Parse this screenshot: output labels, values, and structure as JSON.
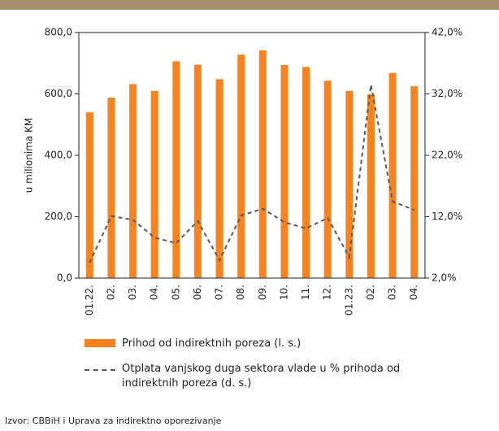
{
  "chart_data": {
    "type": "bar_line",
    "ylabel": "u milionima KM",
    "categories": [
      "01.22.",
      "02.",
      "03.",
      "04.",
      "05.",
      "06.",
      "07.",
      "08.",
      "09.",
      "10.",
      "11.",
      "12.",
      "01.23.",
      "02.",
      "03.",
      "04."
    ],
    "series": [
      {
        "name": "Prihod od indirektnih poreza (l. s.)",
        "type": "bar",
        "color": "#f7821e",
        "axis": "y",
        "values": [
          540,
          588,
          632,
          610,
          706,
          695,
          648,
          728,
          742,
          694,
          688,
          643,
          610,
          598,
          668,
          625
        ]
      },
      {
        "name": "Otplata vanjskog duga sektora vlade u % prihoda od indirektnih poreza (d. s.)",
        "type": "line",
        "color": "#595959",
        "axis": "y2",
        "values": [
          4.5,
          12.1,
          11.5,
          8.6,
          7.7,
          11.3,
          4.9,
          12.2,
          13.3,
          11.1,
          10.1,
          11.8,
          5.4,
          33.5,
          14.5,
          13.1
        ]
      }
    ],
    "ylim": [
      0,
      800
    ],
    "yticks": [
      {
        "value": 0,
        "label": "0,0"
      },
      {
        "value": 200,
        "label": "200,0"
      },
      {
        "value": 400,
        "label": "400,0"
      },
      {
        "value": 600,
        "label": "600,0"
      },
      {
        "value": 800,
        "label": "800,0"
      }
    ],
    "y2lim": [
      2,
      42
    ],
    "y2ticks": [
      {
        "value": 2,
        "label": "2,0%"
      },
      {
        "value": 12,
        "label": "12,0%"
      },
      {
        "value": 22,
        "label": "22,0%"
      },
      {
        "value": 32,
        "label": "32,0%"
      },
      {
        "value": 42,
        "label": "42,0%"
      }
    ],
    "grid": false,
    "legend": "bottom",
    "source": "Izvor: CBBiH i Uprava za indirektno oporezivanje"
  }
}
